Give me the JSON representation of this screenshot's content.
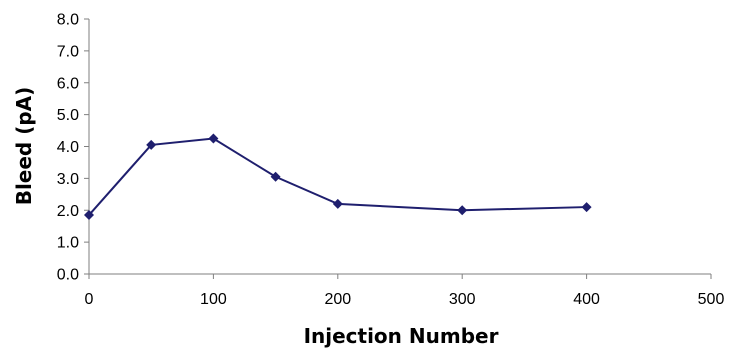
{
  "chart_data": {
    "type": "line",
    "title": "",
    "xlabel": "Injection Number",
    "ylabel": "Bleed (pA)",
    "xlim": [
      0,
      500
    ],
    "ylim": [
      0,
      8
    ],
    "x_ticks": [
      "0",
      "100",
      "200",
      "300",
      "400",
      "500"
    ],
    "y_ticks": [
      "0.0",
      "1.0",
      "2.0",
      "3.0",
      "4.0",
      "5.0",
      "6.0",
      "7.0",
      "8.0"
    ],
    "grid": false,
    "legend": "none",
    "series": [
      {
        "x": [
          0,
          50,
          100,
          150,
          200,
          300,
          400
        ],
        "y": [
          1.85,
          4.05,
          4.25,
          3.05,
          2.2,
          2.0,
          2.1
        ],
        "color": "#1f1f6e",
        "marker": "diamond"
      }
    ]
  }
}
